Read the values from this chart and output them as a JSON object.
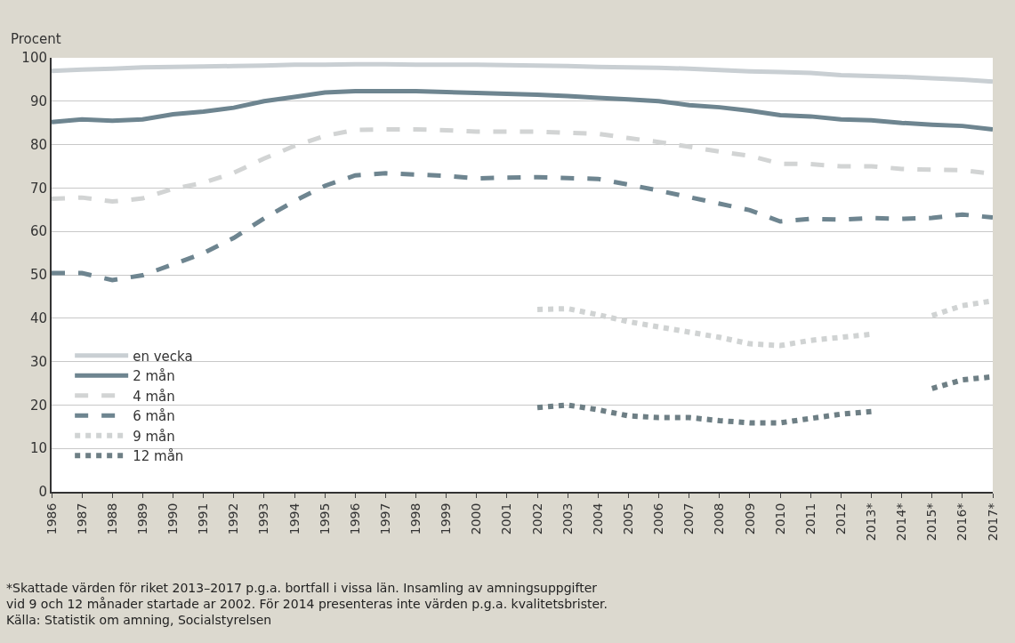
{
  "chart_data": {
    "type": "line",
    "ylabel": "Procent",
    "categories": [
      "1986",
      "1987",
      "1988",
      "1989",
      "1990",
      "1991",
      "1992",
      "1993",
      "1994",
      "1995",
      "1996",
      "1997",
      "1998",
      "1999",
      "2000",
      "2001",
      "2002",
      "2003",
      "2004",
      "2005",
      "2006",
      "2007",
      "2008",
      "2009",
      "2010",
      "2011",
      "2012",
      "2013*",
      "2014*",
      "2015*",
      "2016*",
      "2017*"
    ],
    "series": [
      {
        "name": "en vecka",
        "color": "#c9cfd3",
        "line_style": "solid",
        "values": [
          97.0,
          97.3,
          97.5,
          97.8,
          97.9,
          98.0,
          98.1,
          98.2,
          98.4,
          98.4,
          98.5,
          98.5,
          98.4,
          98.4,
          98.4,
          98.3,
          98.2,
          98.1,
          97.9,
          97.8,
          97.7,
          97.5,
          97.2,
          96.9,
          96.7,
          96.5,
          96.0,
          95.8,
          95.6,
          95.3,
          95.0,
          94.5
        ]
      },
      {
        "name": "2 mån",
        "color": "#6e8590",
        "line_style": "solid",
        "values": [
          85.2,
          85.8,
          85.5,
          85.8,
          87.0,
          87.6,
          88.5,
          90.0,
          91.0,
          92.0,
          92.3,
          92.3,
          92.3,
          92.1,
          91.9,
          91.7,
          91.5,
          91.2,
          90.8,
          90.4,
          90.0,
          89.1,
          88.6,
          87.8,
          86.8,
          86.5,
          85.8,
          85.6,
          85.0,
          84.6,
          84.3,
          83.5
        ]
      },
      {
        "name": "4 mån",
        "color": "#d2d4d4",
        "line_style": "dashed",
        "values": [
          67.5,
          67.8,
          66.9,
          67.6,
          69.8,
          71.2,
          73.5,
          76.8,
          79.7,
          82.0,
          83.4,
          83.5,
          83.5,
          83.3,
          83.0,
          83.0,
          83.0,
          82.7,
          82.5,
          81.5,
          80.6,
          79.5,
          78.4,
          77.4,
          75.6,
          75.5,
          75.0,
          75.0,
          74.4,
          74.2,
          74.1,
          73.3
        ]
      },
      {
        "name": "6 mån",
        "color": "#6e8590",
        "line_style": "dashed",
        "values": [
          50.4,
          50.4,
          48.8,
          49.9,
          52.4,
          55.0,
          58.5,
          63.0,
          67.0,
          70.5,
          72.9,
          73.4,
          73.1,
          72.8,
          72.2,
          72.4,
          72.5,
          72.3,
          72.1,
          70.8,
          69.4,
          67.9,
          66.4,
          64.9,
          62.3,
          62.9,
          62.7,
          63.1,
          62.9,
          63.1,
          63.9,
          63.2
        ]
      },
      {
        "name": "9 mån",
        "color": "#d0d3d3",
        "line_style": "dotted",
        "values": [
          null,
          null,
          null,
          null,
          null,
          null,
          null,
          null,
          null,
          null,
          null,
          null,
          null,
          null,
          null,
          null,
          42.0,
          42.2,
          40.8,
          39.2,
          38.0,
          36.8,
          35.6,
          34.1,
          33.7,
          34.9,
          35.6,
          36.3,
          null,
          40.6,
          42.9,
          44.0
        ]
      },
      {
        "name": "12 mån",
        "color": "#6e7f85",
        "line_style": "dotted",
        "values": [
          null,
          null,
          null,
          null,
          null,
          null,
          null,
          null,
          null,
          null,
          null,
          null,
          null,
          null,
          null,
          null,
          19.4,
          20.0,
          18.9,
          17.5,
          17.1,
          17.1,
          16.4,
          15.9,
          15.9,
          16.9,
          17.9,
          18.5,
          null,
          23.8,
          25.8,
          26.5
        ]
      }
    ],
    "ylim": [
      0,
      100
    ],
    "yticks": [
      0,
      10,
      20,
      30,
      40,
      50,
      60,
      70,
      80,
      90,
      100
    ],
    "grid": "y",
    "legend": "bottom left",
    "marker": "none",
    "annotations": [
      "*Skattade värden för riket 2013–2017 p.g.a. bortfall i vissa län. Insamling av amningsuppgifter vid 9 och 12 månader startade ar 2002. För 2014 presenteras inte värden p.g.a. kvalitetsbrister.",
      "Källa: Statistik om amning, Socialstyrelsen"
    ]
  }
}
